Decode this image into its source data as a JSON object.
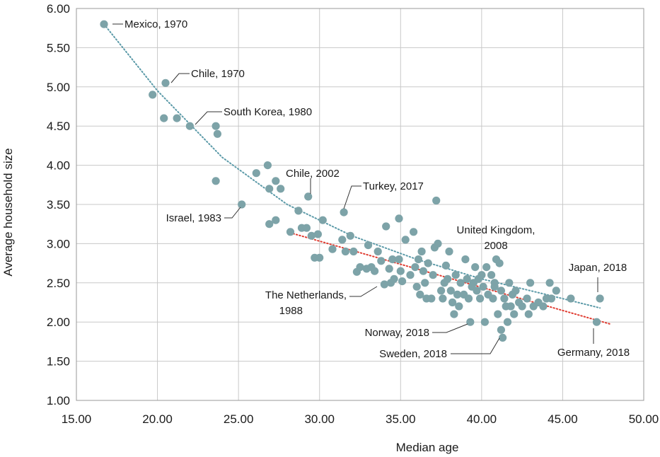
{
  "chart_data": {
    "type": "scatter",
    "title": "",
    "xlabel": "Median age",
    "ylabel": "Average household size",
    "xlim": [
      15,
      50
    ],
    "ylim": [
      1,
      6
    ],
    "xticks": [
      15,
      20,
      25,
      30,
      35,
      40,
      45,
      50
    ],
    "yticks": [
      1,
      1.5,
      2,
      2.5,
      3,
      3.5,
      4,
      4.5,
      5,
      5.5,
      6
    ],
    "xtick_labels": [
      "15.00",
      "20.00",
      "25.00",
      "30.00",
      "35.00",
      "40.00",
      "45.00",
      "50.00"
    ],
    "ytick_labels": [
      "1.00",
      "1.50",
      "2.00",
      "2.50",
      "3.00",
      "3.50",
      "4.00",
      "4.50",
      "5.00",
      "5.50",
      "6.00"
    ],
    "grid": "vertical and horizontal major",
    "colors": {
      "points": "#7da3a8",
      "trend_all": "#5b9aa8",
      "trend_recent": "#e03c31",
      "grid": "#c8c8c8"
    },
    "trendlines": [
      {
        "style": "dotted",
        "color": "#5b9aa8",
        "x": [
          16.7,
          20,
          24,
          28,
          32,
          36,
          40,
          44,
          47.3
        ],
        "y": [
          5.8,
          4.95,
          4.1,
          3.5,
          3.1,
          2.8,
          2.55,
          2.35,
          2.18
        ]
      },
      {
        "style": "dotted",
        "color": "#e03c31",
        "x": [
          28,
          48
        ],
        "y": [
          3.15,
          1.97
        ]
      }
    ],
    "points": [
      [
        16.7,
        5.8
      ],
      [
        19.7,
        4.9
      ],
      [
        20.5,
        5.05
      ],
      [
        20.4,
        4.6
      ],
      [
        21.2,
        4.6
      ],
      [
        22.0,
        4.5
      ],
      [
        23.6,
        4.5
      ],
      [
        23.7,
        4.4
      ],
      [
        23.6,
        3.8
      ],
      [
        25.2,
        3.5
      ],
      [
        26.1,
        3.9
      ],
      [
        26.8,
        4.0
      ],
      [
        26.9,
        3.7
      ],
      [
        27.3,
        3.8
      ],
      [
        27.6,
        3.7
      ],
      [
        27.3,
        3.3
      ],
      [
        26.9,
        3.25
      ],
      [
        28.2,
        3.15
      ],
      [
        28.7,
        3.42
      ],
      [
        28.9,
        3.2
      ],
      [
        29.3,
        3.6
      ],
      [
        29.2,
        3.2
      ],
      [
        29.5,
        3.1
      ],
      [
        29.7,
        2.82
      ],
      [
        29.9,
        3.12
      ],
      [
        30.0,
        2.82
      ],
      [
        30.2,
        3.3
      ],
      [
        30.8,
        2.93
      ],
      [
        31.5,
        3.4
      ],
      [
        31.4,
        3.05
      ],
      [
        31.6,
        2.9
      ],
      [
        31.9,
        3.1
      ],
      [
        32.1,
        2.9
      ],
      [
        32.3,
        2.64
      ],
      [
        32.5,
        2.7
      ],
      [
        32.9,
        2.68
      ],
      [
        33.0,
        2.98
      ],
      [
        33.2,
        2.7
      ],
      [
        33.4,
        2.65
      ],
      [
        33.6,
        2.9
      ],
      [
        33.8,
        2.78
      ],
      [
        34.1,
        3.22
      ],
      [
        34.0,
        2.48
      ],
      [
        34.3,
        2.68
      ],
      [
        34.4,
        2.5
      ],
      [
        34.5,
        2.8
      ],
      [
        34.6,
        2.55
      ],
      [
        34.9,
        3.32
      ],
      [
        34.9,
        2.8
      ],
      [
        35.0,
        2.65
      ],
      [
        35.1,
        2.52
      ],
      [
        35.3,
        3.05
      ],
      [
        35.6,
        2.6
      ],
      [
        35.8,
        3.15
      ],
      [
        35.9,
        2.7
      ],
      [
        36.0,
        2.45
      ],
      [
        36.1,
        2.8
      ],
      [
        36.2,
        2.35
      ],
      [
        36.3,
        2.9
      ],
      [
        36.4,
        2.65
      ],
      [
        36.5,
        2.5
      ],
      [
        36.6,
        2.3
      ],
      [
        36.7,
        2.75
      ],
      [
        36.9,
        2.3
      ],
      [
        37.0,
        2.6
      ],
      [
        37.1,
        2.95
      ],
      [
        37.2,
        3.55
      ],
      [
        37.3,
        3.0
      ],
      [
        37.5,
        2.4
      ],
      [
        37.6,
        2.3
      ],
      [
        37.7,
        2.5
      ],
      [
        37.8,
        2.72
      ],
      [
        37.9,
        2.55
      ],
      [
        38.0,
        2.9
      ],
      [
        38.1,
        2.4
      ],
      [
        38.2,
        2.25
      ],
      [
        38.3,
        2.1
      ],
      [
        38.4,
        2.6
      ],
      [
        38.5,
        2.35
      ],
      [
        38.6,
        2.2
      ],
      [
        38.7,
        2.5
      ],
      [
        38.9,
        2.35
      ],
      [
        39.0,
        2.8
      ],
      [
        39.1,
        2.55
      ],
      [
        39.2,
        2.3
      ],
      [
        39.3,
        2.0
      ],
      [
        39.4,
        2.45
      ],
      [
        39.6,
        2.7
      ],
      [
        39.7,
        2.4
      ],
      [
        39.8,
        2.55
      ],
      [
        39.9,
        2.3
      ],
      [
        40.0,
        2.6
      ],
      [
        40.1,
        2.45
      ],
      [
        40.2,
        2.0
      ],
      [
        40.3,
        2.7
      ],
      [
        40.4,
        2.35
      ],
      [
        40.6,
        2.6
      ],
      [
        40.7,
        2.3
      ],
      [
        40.8,
        2.5
      ],
      [
        40.9,
        2.8
      ],
      [
        41.0,
        2.1
      ],
      [
        41.1,
        2.75
      ],
      [
        41.2,
        1.9
      ],
      [
        41.2,
        2.4
      ],
      [
        41.3,
        1.8
      ],
      [
        41.4,
        2.3
      ],
      [
        41.5,
        2.2
      ],
      [
        41.6,
        2.0
      ],
      [
        41.7,
        2.5
      ],
      [
        41.8,
        2.2
      ],
      [
        41.9,
        2.35
      ],
      [
        42.0,
        2.1
      ],
      [
        42.1,
        2.4
      ],
      [
        42.3,
        2.25
      ],
      [
        42.5,
        2.2
      ],
      [
        42.8,
        2.3
      ],
      [
        42.9,
        2.1
      ],
      [
        43.0,
        2.5
      ],
      [
        43.2,
        2.2
      ],
      [
        43.5,
        2.25
      ],
      [
        43.8,
        2.2
      ],
      [
        44.0,
        2.3
      ],
      [
        44.2,
        2.5
      ],
      [
        44.3,
        2.3
      ],
      [
        44.6,
        2.4
      ],
      [
        45.5,
        2.3
      ],
      [
        47.1,
        2.0
      ],
      [
        47.3,
        2.3
      ],
      [
        40.8,
        2.45
      ],
      [
        39.5,
        2.5
      ]
    ],
    "annotations": [
      {
        "lines": [
          "Mexico, 1970"
        ],
        "point": [
          16.7,
          5.8
        ]
      },
      {
        "lines": [
          "Chile, 1970"
        ],
        "point": [
          20.5,
          5.05
        ]
      },
      {
        "lines": [
          "South Korea, 1980"
        ],
        "point": [
          22.0,
          4.5
        ]
      },
      {
        "lines": [
          "Chile, 2002"
        ],
        "point": [
          29.3,
          3.6
        ]
      },
      {
        "lines": [
          "Turkey, 2017"
        ],
        "point": [
          31.5,
          3.4
        ]
      },
      {
        "lines": [
          "Israel, 1983"
        ],
        "point": [
          25.2,
          3.5
        ]
      },
      {
        "lines": [
          "United Kingdom,",
          "2008"
        ],
        "point": null
      },
      {
        "lines": [
          "The Netherlands,",
          "1988"
        ],
        "point": [
          34.0,
          2.48
        ]
      },
      {
        "lines": [
          "Japan, 2018"
        ],
        "point": [
          47.3,
          2.3
        ]
      },
      {
        "lines": [
          "Norway, 2018"
        ],
        "point": [
          39.3,
          2.0
        ]
      },
      {
        "lines": [
          "Sweden, 2018"
        ],
        "point": [
          41.3,
          1.8
        ]
      },
      {
        "lines": [
          "Germany, 2018"
        ],
        "point": [
          47.1,
          2.0
        ]
      }
    ]
  }
}
